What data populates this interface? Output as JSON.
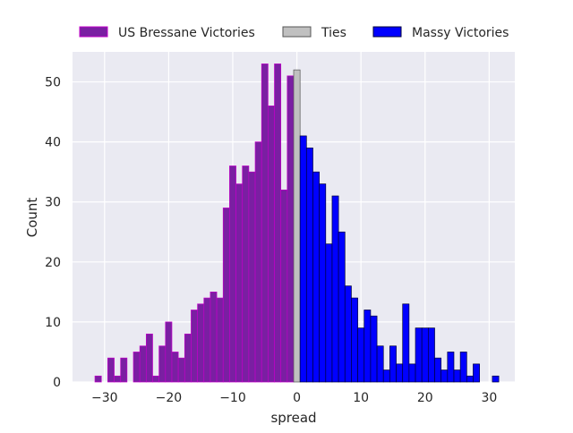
{
  "chart_data": {
    "type": "bar",
    "subtype": "histogram",
    "xlabel": "spread",
    "ylabel": "Count",
    "xlim": [
      -35,
      34
    ],
    "ylim": [
      0,
      55
    ],
    "xticks": [
      -30,
      -20,
      -10,
      0,
      10,
      20,
      30
    ],
    "yticks": [
      0,
      10,
      20,
      30,
      40,
      50
    ],
    "grid": true,
    "legend_position": "top",
    "bin_width": 1,
    "series": [
      {
        "name": "US Bressane Victories",
        "color": "#7a1fa2",
        "edgecolor": "#c000c8",
        "x": [
          -31,
          -30,
          -29,
          -28,
          -27,
          -26,
          -25,
          -24,
          -23,
          -22,
          -21,
          -20,
          -19,
          -18,
          -17,
          -16,
          -15,
          -14,
          -13,
          -12,
          -11,
          -10,
          -9,
          -8,
          -7,
          -6,
          -5,
          -4,
          -3,
          -2,
          -1
        ],
        "values": [
          1,
          0,
          4,
          1,
          4,
          0,
          5,
          6,
          8,
          1,
          6,
          10,
          5,
          4,
          8,
          12,
          13,
          14,
          15,
          14,
          29,
          36,
          33,
          36,
          35,
          40,
          53,
          46,
          53,
          32,
          51
        ]
      },
      {
        "name": "Ties",
        "color": "#c0c0c0",
        "edgecolor": "#555555",
        "x": [
          0
        ],
        "values": [
          52
        ]
      },
      {
        "name": "Massy Victories",
        "color": "#0000ff",
        "edgecolor": "#00003a",
        "x": [
          1,
          2,
          3,
          4,
          5,
          6,
          7,
          8,
          9,
          10,
          11,
          12,
          13,
          14,
          15,
          16,
          17,
          18,
          19,
          20,
          21,
          22,
          23,
          24,
          25,
          26,
          27,
          28,
          29,
          30,
          31
        ],
        "values": [
          41,
          39,
          35,
          33,
          23,
          31,
          25,
          16,
          14,
          9,
          12,
          11,
          6,
          2,
          6,
          3,
          13,
          3,
          9,
          9,
          9,
          4,
          2,
          5,
          2,
          5,
          1,
          3,
          0,
          0,
          1
        ]
      }
    ]
  }
}
